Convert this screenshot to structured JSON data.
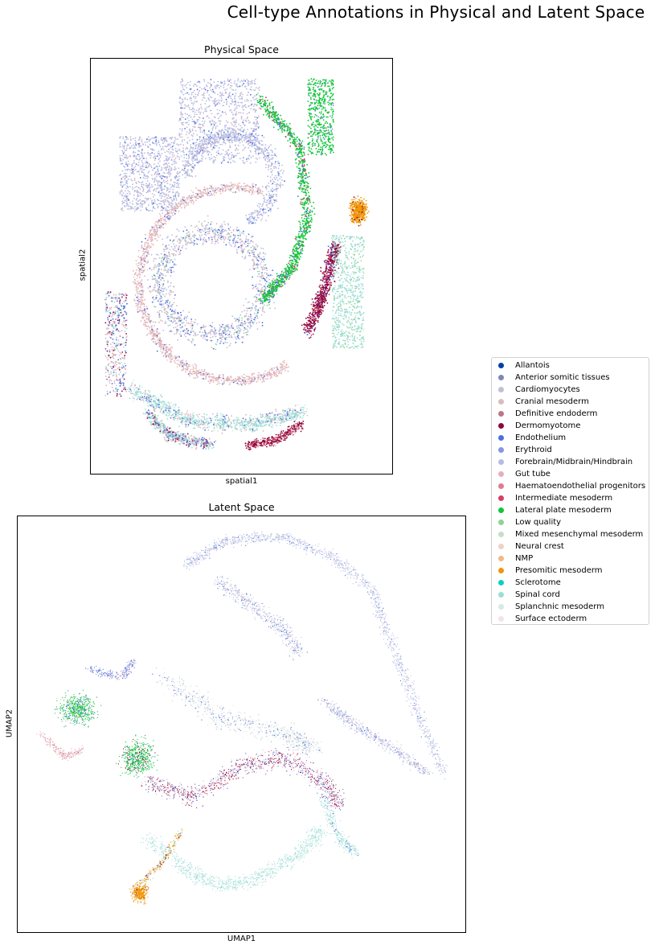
{
  "chart_data": [
    {
      "type": "scatter",
      "title": "Physical Space",
      "xlabel": "spatial1",
      "ylabel": "spatial2",
      "grid": false,
      "ticks": "none",
      "point_style": "small dots colored by cell type"
    },
    {
      "type": "scatter",
      "title": "Latent Space",
      "xlabel": "UMAP1",
      "ylabel": "UMAP2",
      "grid": false,
      "ticks": "none",
      "point_style": "very small dots colored by cell type"
    }
  ],
  "figure": {
    "title": "Cell-type Annotations in Physical and Latent Space",
    "legend_placement": "right"
  },
  "legend": {
    "items": [
      {
        "label": "Allantois",
        "color": "#023fa5"
      },
      {
        "label": "Anterior somitic tissues",
        "color": "#7d87b9"
      },
      {
        "label": "Cardiomyocytes",
        "color": "#bec1d4"
      },
      {
        "label": "Cranial mesoderm",
        "color": "#d6bcc0"
      },
      {
        "label": "Definitive endoderm",
        "color": "#bb7784"
      },
      {
        "label": "Dermomyotome",
        "color": "#8e063b"
      },
      {
        "label": "Endothelium",
        "color": "#4a6fe3"
      },
      {
        "label": "Erythroid",
        "color": "#8595e1"
      },
      {
        "label": "Forebrain/Midbrain/Hindbrain",
        "color": "#b5bbe3"
      },
      {
        "label": "Gut tube",
        "color": "#e6afb9"
      },
      {
        "label": "Haematoendothelial progenitors",
        "color": "#e07b91"
      },
      {
        "label": "Intermediate mesoderm",
        "color": "#d33f6a"
      },
      {
        "label": "Lateral plate mesoderm",
        "color": "#11c638"
      },
      {
        "label": "Low quality",
        "color": "#8dd593"
      },
      {
        "label": "Mixed mesenchymal mesoderm",
        "color": "#c6dec7"
      },
      {
        "label": "Neural crest",
        "color": "#ead3c6"
      },
      {
        "label": "NMP",
        "color": "#f0b98d"
      },
      {
        "label": "Presomitic mesoderm",
        "color": "#ef9708"
      },
      {
        "label": "Sclerotome",
        "color": "#0fcfc0"
      },
      {
        "label": "Spinal cord",
        "color": "#9cded6"
      },
      {
        "label": "Splanchnic mesoderm",
        "color": "#d5eae7"
      },
      {
        "label": "Surface ectoderm",
        "color": "#f3e1eb"
      }
    ]
  }
}
